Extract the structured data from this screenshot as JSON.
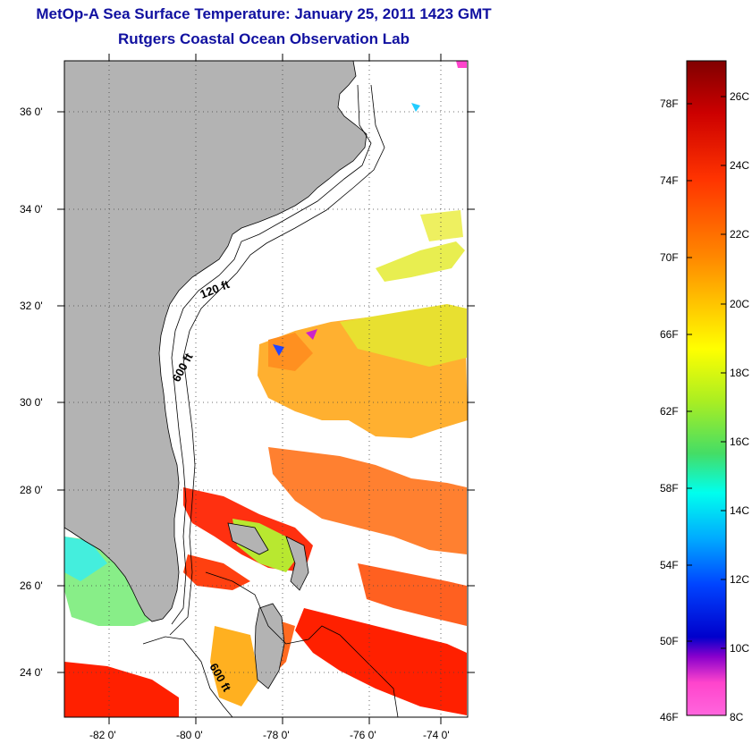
{
  "header": {
    "title": "MetOp-A Sea Surface Temperature:  January 25, 2011 1423 GMT",
    "subtitle": "Rutgers Coastal Ocean Observation Lab"
  },
  "map": {
    "lat_labels": [
      "36 0'",
      "34 0'",
      "32 0'",
      "30 0'",
      "28 0'",
      "26 0'",
      "24 0'"
    ],
    "lon_labels": [
      "-82 0'",
      "-80 0'",
      "-78 0'",
      "-76 0'",
      "-74 0'"
    ],
    "contours": {
      "c120": "120 ft",
      "c600a": "600 ft",
      "c600b": "600 ft"
    },
    "colors": {
      "land": "#b3b3b3",
      "water_cloud": "#ffffff"
    }
  },
  "colorbar": {
    "fahrenheit": [
      "78F",
      "74F",
      "70F",
      "66F",
      "62F",
      "58F",
      "54F",
      "50F",
      "46F"
    ],
    "celsius": [
      "26C",
      "24C",
      "22C",
      "20C",
      "18C",
      "16C",
      "14C",
      "12C",
      "10C",
      "8C"
    ],
    "gradient": [
      "#800000",
      "#cc0000",
      "#ff3300",
      "#ff8800",
      "#ffcc00",
      "#ffff00",
      "#aaee22",
      "#44dd66",
      "#00ffee",
      "#00aaff",
      "#0044ff",
      "#0000cc",
      "#8800cc",
      "#ff44cc",
      "#ff66dd"
    ]
  }
}
